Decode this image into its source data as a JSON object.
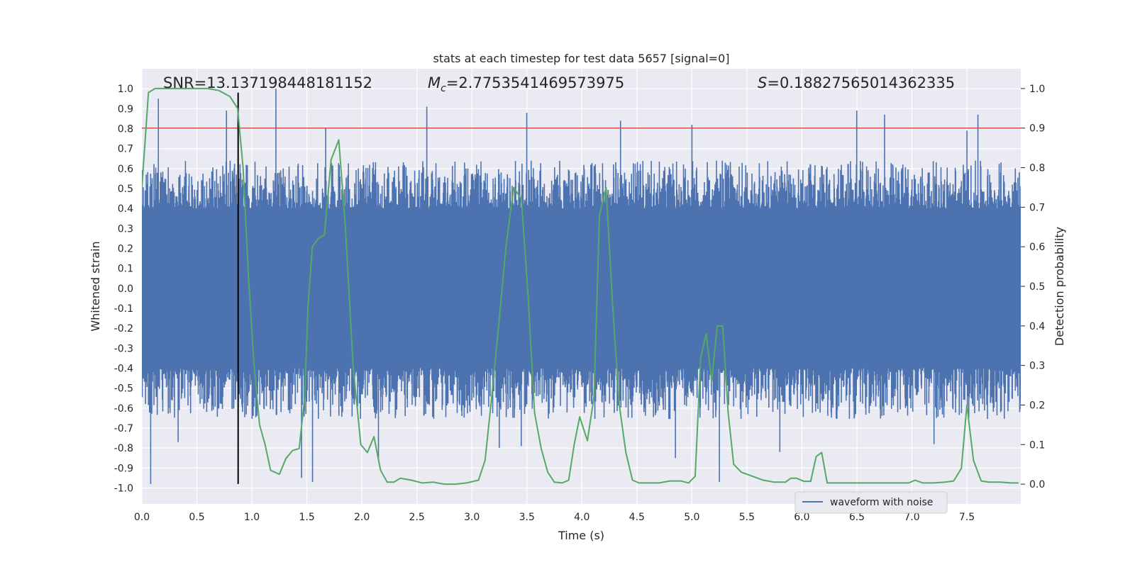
{
  "chart_data": {
    "type": "line",
    "title": "stats at each timestep for test data 5657 [signal=0]",
    "xlabel": "Time (s)",
    "ylabel_left": "Whitened strain",
    "ylabel_right": "Detection probability",
    "xlim": [
      0.0,
      7.99
    ],
    "ylim_left": [
      -1.08,
      1.1
    ],
    "ylim_right": [
      -0.05,
      1.05
    ],
    "x_ticks": [
      "0.0",
      "0.5",
      "1.0",
      "1.5",
      "2.0",
      "2.5",
      "3.0",
      "3.5",
      "4.0",
      "4.5",
      "5.0",
      "5.5",
      "6.0",
      "6.5",
      "7.0",
      "7.5"
    ],
    "y_ticks_left": [
      "-1.0",
      "-0.9",
      "-0.8",
      "-0.7",
      "-0.6",
      "-0.5",
      "-0.4",
      "-0.3",
      "-0.2",
      "-0.1",
      "0.0",
      "0.1",
      "0.2",
      "0.3",
      "0.4",
      "0.5",
      "0.6",
      "0.7",
      "0.8",
      "0.9",
      "1.0"
    ],
    "y_ticks_right": [
      "0.0",
      "0.1",
      "0.2",
      "0.3",
      "0.4",
      "0.5",
      "0.6",
      "0.7",
      "0.8",
      "0.9",
      "1.0"
    ],
    "annotations": {
      "snr": "SNR=13.137198448181152",
      "mc_symbol": "M",
      "mc_sub": "c",
      "mc_value": "=2.7753541469573975",
      "s_symbol": "S",
      "s_value": "=0.18827565014362335"
    },
    "threshold": {
      "value": 0.9,
      "axis": "right",
      "color": "#c44e52"
    },
    "vertical_marker": {
      "x": 0.875,
      "y_range": [
        -0.98,
        0.98
      ],
      "color": "#000000"
    },
    "legend": {
      "entries": [
        "waveform with noise"
      ],
      "placement": "lower-right"
    },
    "grid": true,
    "series": [
      {
        "name": "waveform with noise",
        "axis": "left",
        "color": "#4c72b0",
        "kind": "noise",
        "core_amplitude": 0.4,
        "typical_peak": 0.55,
        "peaks_pos": [
          [
            0.15,
            0.95
          ],
          [
            0.77,
            0.89
          ],
          [
            1.22,
            1.0
          ],
          [
            1.67,
            0.8
          ],
          [
            2.59,
            0.91
          ],
          [
            3.5,
            0.88
          ],
          [
            4.35,
            0.84
          ],
          [
            5.0,
            0.82
          ],
          [
            6.5,
            0.89
          ],
          [
            6.75,
            0.87
          ],
          [
            7.5,
            0.79
          ],
          [
            7.6,
            0.87
          ]
        ],
        "peaks_neg": [
          [
            0.08,
            -0.98
          ],
          [
            0.33,
            -0.77
          ],
          [
            1.45,
            -0.95
          ],
          [
            1.55,
            -0.97
          ],
          [
            2.15,
            -0.85
          ],
          [
            3.25,
            -0.8
          ],
          [
            3.45,
            -0.79
          ],
          [
            4.85,
            -0.85
          ],
          [
            5.25,
            -0.97
          ],
          [
            5.8,
            -0.82
          ],
          [
            7.2,
            -0.78
          ]
        ]
      },
      {
        "axis": "right",
        "color": "#55a868",
        "x": [
          0.0,
          0.06,
          0.12,
          0.2,
          0.3,
          0.4,
          0.5,
          0.6,
          0.7,
          0.8,
          0.87,
          0.92,
          0.97,
          1.02,
          1.07,
          1.12,
          1.17,
          1.25,
          1.31,
          1.37,
          1.43,
          1.48,
          1.51,
          1.55,
          1.6,
          1.66,
          1.72,
          1.79,
          1.85,
          1.92,
          1.99,
          2.05,
          2.11,
          2.17,
          2.23,
          2.29,
          2.35,
          2.45,
          2.55,
          2.65,
          2.75,
          2.85,
          2.95,
          3.06,
          3.12,
          3.18,
          3.25,
          3.31,
          3.38,
          3.45,
          3.51,
          3.57,
          3.63,
          3.69,
          3.75,
          3.82,
          3.88,
          3.93,
          3.98,
          4.05,
          4.11,
          4.16,
          4.22,
          4.28,
          4.34,
          4.4,
          4.46,
          4.52,
          4.6,
          4.7,
          4.8,
          4.9,
          4.97,
          5.03,
          5.08,
          5.13,
          5.18,
          5.23,
          5.28,
          5.33,
          5.38,
          5.45,
          5.55,
          5.65,
          5.75,
          5.85,
          5.9,
          5.95,
          6.02,
          6.08,
          6.13,
          6.18,
          6.23,
          6.3,
          6.4,
          6.5,
          6.6,
          6.7,
          6.8,
          6.9,
          6.97,
          7.03,
          7.1,
          7.2,
          7.3,
          7.38,
          7.45,
          7.5,
          7.56,
          7.63,
          7.7,
          7.8,
          7.9,
          7.97
        ],
        "values": [
          0.75,
          0.99,
          1.0,
          1.0,
          1.0,
          1.0,
          1.0,
          1.0,
          0.995,
          0.98,
          0.95,
          0.8,
          0.52,
          0.3,
          0.15,
          0.1,
          0.035,
          0.025,
          0.065,
          0.085,
          0.09,
          0.22,
          0.45,
          0.6,
          0.62,
          0.63,
          0.82,
          0.87,
          0.65,
          0.3,
          0.1,
          0.08,
          0.12,
          0.035,
          0.005,
          0.005,
          0.015,
          0.01,
          0.003,
          0.005,
          0.0,
          0.0,
          0.003,
          0.01,
          0.06,
          0.22,
          0.42,
          0.6,
          0.75,
          0.72,
          0.48,
          0.18,
          0.09,
          0.03,
          0.005,
          0.003,
          0.01,
          0.1,
          0.17,
          0.11,
          0.22,
          0.68,
          0.75,
          0.45,
          0.2,
          0.08,
          0.01,
          0.003,
          0.003,
          0.003,
          0.008,
          0.008,
          0.003,
          0.02,
          0.32,
          0.38,
          0.26,
          0.4,
          0.4,
          0.18,
          0.05,
          0.03,
          0.02,
          0.01,
          0.005,
          0.005,
          0.015,
          0.015,
          0.007,
          0.007,
          0.07,
          0.08,
          0.003,
          0.003,
          0.003,
          0.003,
          0.003,
          0.003,
          0.003,
          0.003,
          0.003,
          0.01,
          0.003,
          0.003,
          0.005,
          0.008,
          0.04,
          0.2,
          0.06,
          0.008,
          0.005,
          0.005,
          0.003,
          0.003
        ]
      }
    ]
  }
}
